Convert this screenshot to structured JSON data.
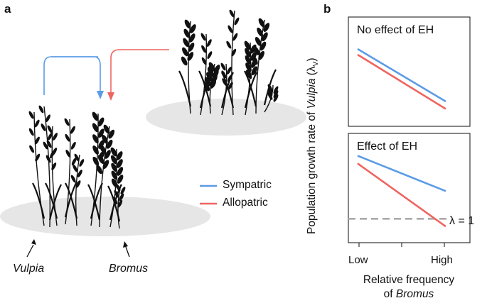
{
  "panel_a": {
    "letter": "a",
    "species": {
      "vulpia": "Vulpia",
      "bromus": "Bromus"
    },
    "legend": [
      {
        "label": "Sympatric",
        "color": "#5b9be6"
      },
      {
        "label": "Allopatric",
        "color": "#ee6560"
      }
    ]
  },
  "panel_b": {
    "letter": "b",
    "y_axis_prefix": "Population growth rate of ",
    "y_axis_italic": "Vulpia",
    "y_axis_suffix": " (λ",
    "y_axis_sub": "V",
    "y_axis_close": ")",
    "x_axis_line1": "Relative frequency",
    "x_axis_line2_prefix": "of ",
    "x_axis_line2_italic": "Bromus",
    "x_ticks": [
      "Low",
      "High"
    ],
    "reference_label": "λ = 1",
    "reference_color": "#aaaaaa"
  },
  "chart_data": [
    {
      "type": "line",
      "title": "No effect of EH",
      "categories": [
        "Low",
        "High"
      ],
      "series": [
        {
          "name": "Sympatric",
          "values": [
            0.78,
            0.22
          ]
        },
        {
          "name": "Allopatric",
          "values": [
            0.72,
            0.14
          ]
        }
      ],
      "ylim": [
        0,
        1
      ]
    },
    {
      "type": "line",
      "title": "Effect of EH",
      "categories": [
        "Low",
        "High"
      ],
      "series": [
        {
          "name": "Sympatric",
          "values": [
            0.82,
            0.36
          ]
        },
        {
          "name": "Allopatric",
          "values": [
            0.72,
            -0.1
          ]
        }
      ],
      "reference_line": 0,
      "ylim": [
        -0.2,
        1
      ]
    }
  ]
}
